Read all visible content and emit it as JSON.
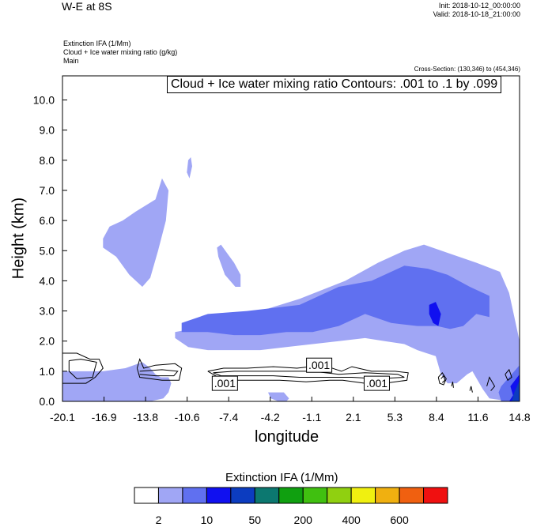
{
  "header": {
    "title": "W-E at 8S",
    "init": "Init: 2018-10-12_00:00:00",
    "valid": "Valid: 2018-10-18_21:00:00",
    "field_lines": [
      "Extinction IFA   (1/Mm)",
      "Cloud + Ice water mixing ratio   (g/kg)",
      "Main"
    ],
    "cross_section": "Cross-Section: (130,346) to (454,346)"
  },
  "chart_data": {
    "type": "heatmap",
    "title": "W-E at 8S",
    "xlabel": "longitude",
    "ylabel": "Height (km)",
    "xlim": [
      -20.1,
      14.8
    ],
    "ylim": [
      0.0,
      10.8
    ],
    "x_ticks": [
      "-20.1",
      "-16.9",
      "-13.8",
      "-10.6",
      "-7.4",
      "-4.2",
      "-1.1",
      "2.1",
      "5.3",
      "8.4",
      "11.6",
      "14.8"
    ],
    "y_ticks": [
      "0.0",
      "1.0",
      "2.0",
      "3.0",
      "4.0",
      "5.0",
      "6.0",
      "7.0",
      "8.0",
      "9.0",
      "10.0"
    ],
    "contour_annotation": "Cloud + Ice water mixing ratio Contours: .001 to .1 by .099",
    "contour_labels": [
      {
        "text": ".001",
        "lon": -7.7,
        "height": 0.6
      },
      {
        "text": ".001",
        "lon": -0.5,
        "height": 1.2
      },
      {
        "text": ".001",
        "lon": 3.9,
        "height": 0.6
      }
    ],
    "colorbar": {
      "title": "Extinction IFA  (1/Mm)",
      "colors": [
        "#ffffff",
        "#a0a6f5",
        "#6070f0",
        "#1010f0",
        "#0c3cc0",
        "#0c7870",
        "#10a010",
        "#40c010",
        "#90d010",
        "#f0f010",
        "#f0b010",
        "#f06010",
        "#f01010"
      ],
      "tick_labels": [
        "2",
        "10",
        "50",
        "200",
        "400",
        "600"
      ]
    },
    "regions": [
      {
        "level": 1,
        "lon": [
          -20.1,
          -17.0,
          -15.3,
          -14.0,
          -13.4,
          -13.0,
          -12.6,
          -12.0,
          -11.8,
          -12.0,
          -12.4,
          -13.4,
          -14.2,
          -15.0,
          -16.0,
          -17.2,
          -18.3,
          -19.0,
          -20.1
        ],
        "height": [
          1.0,
          1.0,
          1.1,
          1.3,
          1.1,
          0.9,
          0.8,
          0.8,
          0.6,
          0.3,
          0.1,
          0.0,
          0.0,
          0.0,
          0.0,
          0.0,
          0.0,
          0.0,
          0.0
        ]
      },
      {
        "level": 1,
        "lon": [
          -4.4,
          -3.2,
          -2.8,
          -3.0,
          -3.6,
          -4.2
        ],
        "height": [
          0.3,
          0.3,
          0.1,
          0.0,
          0.0,
          0.1
        ]
      },
      {
        "level": 1,
        "lon": [
          -17.0,
          -16.5,
          -15.5,
          -14.5,
          -13.0,
          -12.5,
          -12.0,
          -12.2,
          -12.8,
          -13.4,
          -14.0,
          -15.0,
          -16.0,
          -17.0
        ],
        "height": [
          5.4,
          5.8,
          6.0,
          6.3,
          6.7,
          7.4,
          7.0,
          6.0,
          5.0,
          4.1,
          3.8,
          4.2,
          4.8,
          5.1
        ]
      },
      {
        "level": 1,
        "lon": [
          -11.5,
          -9.0,
          -5.0,
          -2.0,
          1.5,
          4.0,
          6.0,
          7.5,
          9.5,
          11.5,
          13.3,
          14.0,
          14.8,
          14.8,
          14.0,
          12.5,
          12.0,
          11.2,
          10.8,
          10.0,
          9.3,
          8.8,
          8.4,
          7.7,
          7.0,
          6.0,
          4.5,
          3.0,
          1.0,
          -1.0,
          -3.0,
          -5.0,
          -7.0,
          -9.0,
          -10.5,
          -11.5
        ],
        "height": [
          2.3,
          2.5,
          3.0,
          3.4,
          4.0,
          4.6,
          5.0,
          5.2,
          4.9,
          4.6,
          4.3,
          3.6,
          2.0,
          0.0,
          0.0,
          0.1,
          0.4,
          1.0,
          0.9,
          0.6,
          0.6,
          0.9,
          1.5,
          1.6,
          1.7,
          1.9,
          2.0,
          2.1,
          2.0,
          1.9,
          1.8,
          1.7,
          1.7,
          1.7,
          1.8,
          2.1
        ]
      },
      {
        "level": 1,
        "lon": [
          -8.3,
          -8.0,
          -7.5,
          -7.0,
          -6.5,
          -6.5,
          -6.9,
          -7.7,
          -8.2
        ],
        "height": [
          5.1,
          5.2,
          4.9,
          4.6,
          4.2,
          3.8,
          3.8,
          4.2,
          4.8
        ]
      },
      {
        "level": 1,
        "lon": [
          -10.5,
          -10.3,
          -10.2,
          -10.4,
          -10.6
        ],
        "height": [
          8.0,
          8.1,
          7.8,
          7.4,
          7.6
        ]
      },
      {
        "level": 2,
        "lon": [
          -11.0,
          -9.0,
          -6.0,
          -2.0,
          1.0,
          3.5,
          6.0,
          7.8,
          9.3,
          11.0,
          12.5,
          12.5,
          11.5,
          10.5,
          9.5,
          8.5,
          7.0,
          5.0,
          3.0,
          1.0,
          -1.0,
          -3.0,
          -5.0,
          -7.0,
          -9.0,
          -11.0
        ],
        "height": [
          2.6,
          2.9,
          3.0,
          3.2,
          3.8,
          4.0,
          4.5,
          4.4,
          4.2,
          3.8,
          3.5,
          2.8,
          2.9,
          2.5,
          2.4,
          2.5,
          2.5,
          2.6,
          2.9,
          2.5,
          2.3,
          2.3,
          2.2,
          2.2,
          2.3,
          2.3
        ]
      },
      {
        "level": 2,
        "lon": [
          13.6,
          14.8,
          14.8,
          13.4,
          13.2,
          13.4
        ],
        "height": [
          0.6,
          1.2,
          0.0,
          0.0,
          0.3,
          0.5
        ]
      },
      {
        "level": 3,
        "lon": [
          7.9,
          8.4,
          8.8,
          8.6,
          8.2,
          7.9
        ],
        "height": [
          3.2,
          3.3,
          2.9,
          2.5,
          2.6,
          2.9
        ]
      },
      {
        "level": 3,
        "lon": [
          14.1,
          14.8,
          14.8,
          14.0,
          14.3
        ],
        "height": [
          0.5,
          0.9,
          0.0,
          0.0,
          0.2
        ]
      },
      {
        "level": 4,
        "lon": [
          14.4,
          14.8,
          14.8,
          14.2
        ],
        "height": [
          0.3,
          0.7,
          0.0,
          0.0
        ]
      }
    ],
    "contour_lines": [
      [
        [
          -20.1,
          1.6
        ],
        [
          -19.0,
          1.6
        ],
        [
          -18.0,
          1.4
        ],
        [
          -17.3,
          1.4
        ],
        [
          -17.0,
          1.1
        ],
        [
          -17.6,
          0.8
        ],
        [
          -18.3,
          0.6
        ],
        [
          -19.1,
          0.6
        ],
        [
          -20.1,
          0.6
        ]
      ],
      [
        [
          -19.6,
          1.35
        ],
        [
          -18.7,
          1.4
        ],
        [
          -17.5,
          1.3
        ],
        [
          -17.8,
          0.8
        ],
        [
          -19.0,
          0.75
        ],
        [
          -19.6,
          1.0
        ],
        [
          -19.6,
          1.35
        ]
      ],
      [
        [
          -14.4,
          1.1
        ],
        [
          -14.2,
          1.4
        ],
        [
          -13.9,
          1.1
        ],
        [
          -13.0,
          1.2
        ],
        [
          -11.5,
          1.25
        ],
        [
          -11.0,
          1.1
        ],
        [
          -11.2,
          0.7
        ],
        [
          -12.5,
          0.7
        ],
        [
          -14.2,
          0.8
        ],
        [
          -14.4,
          1.1
        ]
      ],
      [
        [
          -14.2,
          1.0
        ],
        [
          -12.5,
          1.05
        ],
        [
          -11.3,
          1.0
        ],
        [
          -11.6,
          0.85
        ],
        [
          -13.0,
          0.85
        ],
        [
          -14.2,
          0.9
        ]
      ],
      [
        [
          -9.0,
          1.0
        ],
        [
          -7.8,
          1.1
        ],
        [
          -6.0,
          1.1
        ],
        [
          -4.0,
          1.15
        ],
        [
          -2.2,
          1.1
        ],
        [
          -0.2,
          1.2
        ],
        [
          1.2,
          1.0
        ],
        [
          2.0,
          1.15
        ],
        [
          3.5,
          1.0
        ],
        [
          5.3,
          1.0
        ],
        [
          6.3,
          0.95
        ],
        [
          6.2,
          0.7
        ],
        [
          4.5,
          0.6
        ],
        [
          3.0,
          0.6
        ],
        [
          1.3,
          0.7
        ],
        [
          0.3,
          0.7
        ],
        [
          -1.5,
          0.65
        ],
        [
          -3.5,
          0.7
        ],
        [
          -5.0,
          0.7
        ],
        [
          -6.8,
          0.7
        ],
        [
          -8.2,
          0.8
        ],
        [
          -9.0,
          1.0
        ]
      ],
      [
        [
          -8.6,
          0.95
        ],
        [
          -7.0,
          1.0
        ],
        [
          -5.0,
          1.0
        ],
        [
          -3.0,
          1.0
        ],
        [
          -1.0,
          1.0
        ],
        [
          1.0,
          0.9
        ],
        [
          3.0,
          0.95
        ],
        [
          5.5,
          0.9
        ],
        [
          6.0,
          0.8
        ],
        [
          4.0,
          0.75
        ],
        [
          2.0,
          0.8
        ],
        [
          0.0,
          0.8
        ],
        [
          -2.0,
          0.8
        ],
        [
          -4.0,
          0.85
        ],
        [
          -6.0,
          0.85
        ],
        [
          -8.0,
          0.85
        ],
        [
          -8.6,
          0.95
        ]
      ],
      [
        [
          8.6,
          0.8
        ],
        [
          8.9,
          0.95
        ],
        [
          9.2,
          0.75
        ],
        [
          9.0,
          0.55
        ],
        [
          8.7,
          0.6
        ],
        [
          8.6,
          0.8
        ]
      ],
      [
        [
          8.8,
          0.75
        ],
        [
          9.0,
          0.85
        ],
        [
          9.1,
          0.7
        ],
        [
          8.9,
          0.62
        ]
      ],
      [
        [
          9.6,
          0.5
        ],
        [
          9.7,
          0.65
        ],
        [
          9.75,
          0.45
        ]
      ],
      [
        [
          11.0,
          0.35
        ],
        [
          11.1,
          0.5
        ],
        [
          11.2,
          0.3
        ]
      ],
      [
        [
          12.3,
          0.5
        ],
        [
          12.5,
          0.8
        ],
        [
          12.9,
          0.5
        ],
        [
          12.6,
          0.35
        ]
      ],
      [
        [
          13.7,
          0.9
        ],
        [
          14.0,
          1.05
        ],
        [
          14.2,
          0.8
        ],
        [
          13.9,
          0.7
        ],
        [
          13.7,
          0.9
        ]
      ]
    ]
  }
}
